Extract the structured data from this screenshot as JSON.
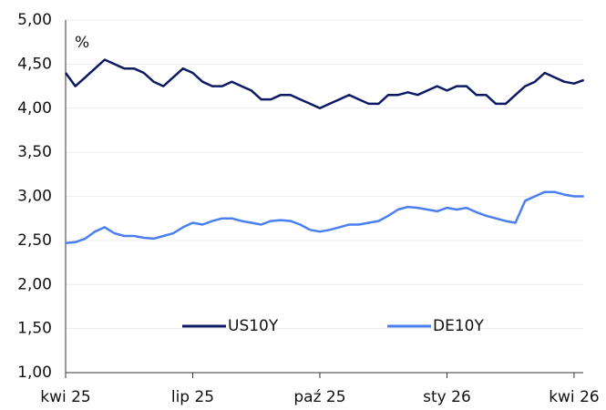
{
  "chart_data": {
    "type": "line",
    "ylabel": "%",
    "categories": [
      "kwi 25",
      null,
      null,
      null,
      null,
      null,
      null,
      null,
      null,
      null,
      null,
      null,
      null,
      "lip 25",
      null,
      null,
      null,
      null,
      null,
      null,
      null,
      null,
      null,
      null,
      null,
      null,
      "paź 25",
      null,
      null,
      null,
      null,
      null,
      null,
      null,
      null,
      null,
      null,
      null,
      null,
      "sty 26",
      null,
      null,
      null,
      null,
      null,
      null,
      null,
      null,
      null,
      null,
      null,
      null,
      "kwi 26",
      null
    ],
    "series": [
      {
        "name": "US10Y",
        "color": "#0d1a63",
        "values": [
          4.4,
          4.25,
          4.35,
          4.45,
          4.55,
          4.5,
          4.45,
          4.45,
          4.4,
          4.3,
          4.25,
          4.35,
          4.45,
          4.4,
          4.3,
          4.25,
          4.25,
          4.3,
          4.25,
          4.2,
          4.1,
          4.1,
          4.15,
          4.15,
          4.1,
          4.05,
          4.0,
          4.05,
          4.1,
          4.15,
          4.1,
          4.05,
          4.05,
          4.15,
          4.15,
          4.18,
          4.15,
          4.2,
          4.25,
          4.2,
          4.25,
          4.25,
          4.15,
          4.15,
          4.05,
          4.05,
          4.15,
          4.25,
          4.3,
          4.4,
          4.35,
          4.3,
          4.28,
          4.32
        ]
      },
      {
        "name": "DE10Y",
        "color": "#4a7ff0",
        "values": [
          2.47,
          2.48,
          2.52,
          2.6,
          2.65,
          2.58,
          2.55,
          2.55,
          2.53,
          2.52,
          2.55,
          2.58,
          2.65,
          2.7,
          2.68,
          2.72,
          2.75,
          2.75,
          2.72,
          2.7,
          2.68,
          2.72,
          2.73,
          2.72,
          2.68,
          2.62,
          2.6,
          2.62,
          2.65,
          2.68,
          2.68,
          2.7,
          2.72,
          2.78,
          2.85,
          2.88,
          2.87,
          2.85,
          2.83,
          2.87,
          2.85,
          2.87,
          2.82,
          2.78,
          2.75,
          2.72,
          2.7,
          2.95,
          3.0,
          3.05,
          3.05,
          3.02,
          3.0,
          3.0
        ]
      }
    ],
    "ylim": [
      1,
      5
    ],
    "yticks": [
      {
        "value": 1,
        "label": "1,00"
      },
      {
        "value": 1.5,
        "label": "1,50"
      },
      {
        "value": 2,
        "label": "2,00"
      },
      {
        "value": 2.5,
        "label": "2,50"
      },
      {
        "value": 3,
        "label": "3,00"
      },
      {
        "value": 3.5,
        "label": "3,50"
      },
      {
        "value": 4,
        "label": "4,00"
      },
      {
        "value": 4.5,
        "label": "4,50"
      },
      {
        "value": 5,
        "label": "5,00"
      }
    ],
    "grid": true
  }
}
